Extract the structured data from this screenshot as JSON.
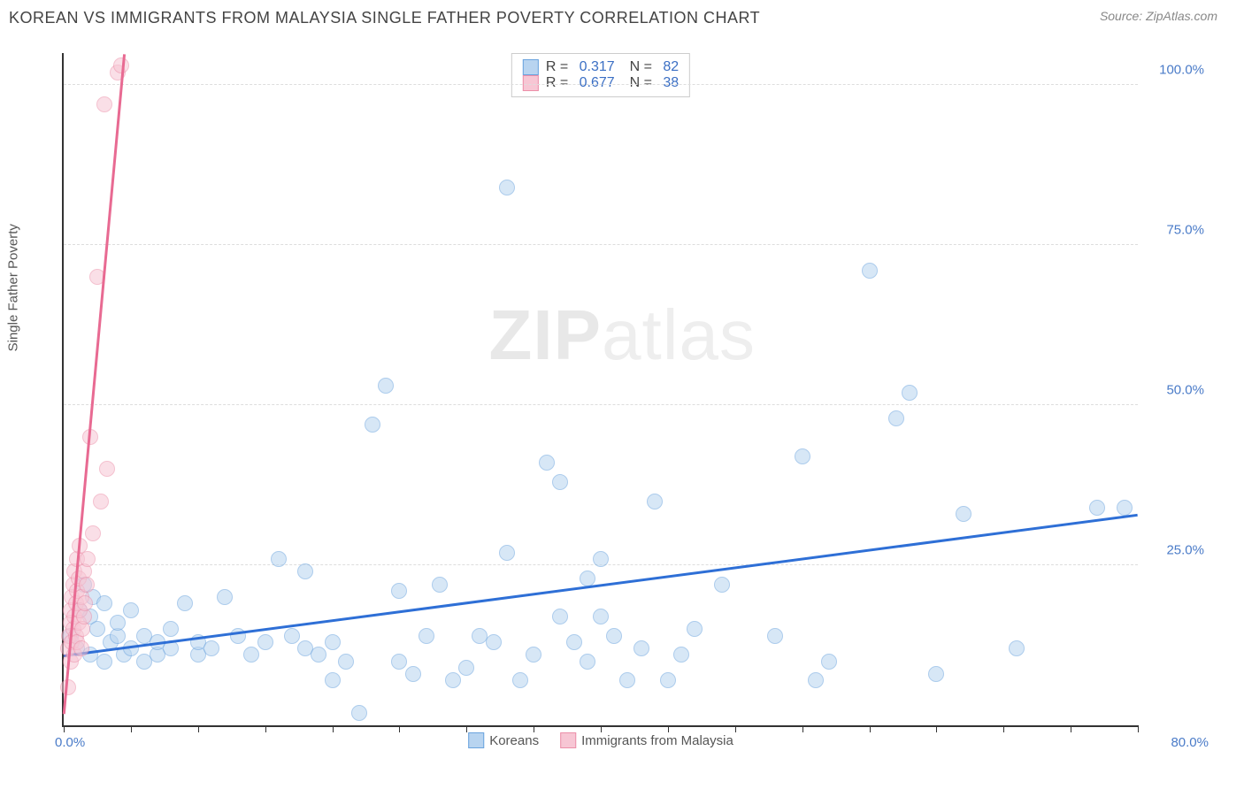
{
  "title": "KOREAN VS IMMIGRANTS FROM MALAYSIA SINGLE FATHER POVERTY CORRELATION CHART",
  "source": "Source: ZipAtlas.com",
  "watermark_bold": "ZIP",
  "watermark_light": "atlas",
  "chart": {
    "type": "scatter",
    "ylabel": "Single Father Poverty",
    "xlim": [
      0,
      80
    ],
    "ylim": [
      0,
      105
    ],
    "xtick_positions": [
      0,
      5,
      10,
      15,
      20,
      25,
      30,
      35,
      40,
      45,
      50,
      55,
      60,
      65,
      70,
      75,
      80
    ],
    "xtick_labels": {
      "min": "0.0%",
      "max": "80.0%"
    },
    "ytick_positions": [
      25,
      50,
      75,
      100
    ],
    "ytick_labels": [
      "25.0%",
      "50.0%",
      "75.0%",
      "100.0%"
    ],
    "grid_color": "#dddddd",
    "axis_color": "#333333",
    "background_color": "#ffffff",
    "marker_radius": 9,
    "marker_opacity": 0.55,
    "series": [
      {
        "name": "Koreans",
        "color_fill": "#b8d4f0",
        "color_stroke": "#6aa3de",
        "trend_color": "#2e6fd6",
        "R": "0.317",
        "N": "82",
        "trend": {
          "x1": 0,
          "y1": 11,
          "x2": 80,
          "y2": 33
        },
        "points": [
          [
            0.5,
            14
          ],
          [
            1,
            12
          ],
          [
            1.2,
            18
          ],
          [
            1.5,
            22
          ],
          [
            2,
            11
          ],
          [
            2,
            17
          ],
          [
            2.2,
            20
          ],
          [
            2.5,
            15
          ],
          [
            3,
            19
          ],
          [
            3,
            10
          ],
          [
            3.5,
            13
          ],
          [
            4,
            14
          ],
          [
            4,
            16
          ],
          [
            4.5,
            11
          ],
          [
            5,
            12
          ],
          [
            5,
            18
          ],
          [
            6,
            10
          ],
          [
            6,
            14
          ],
          [
            7,
            11
          ],
          [
            7,
            13
          ],
          [
            8,
            12
          ],
          [
            8,
            15
          ],
          [
            9,
            19
          ],
          [
            10,
            11
          ],
          [
            10,
            13
          ],
          [
            11,
            12
          ],
          [
            12,
            20
          ],
          [
            13,
            14
          ],
          [
            14,
            11
          ],
          [
            15,
            13
          ],
          [
            16,
            26
          ],
          [
            17,
            14
          ],
          [
            18,
            12
          ],
          [
            18,
            24
          ],
          [
            19,
            11
          ],
          [
            20,
            7
          ],
          [
            20,
            13
          ],
          [
            21,
            10
          ],
          [
            22,
            2
          ],
          [
            23,
            47
          ],
          [
            24,
            53
          ],
          [
            25,
            10
          ],
          [
            25,
            21
          ],
          [
            26,
            8
          ],
          [
            27,
            14
          ],
          [
            28,
            22
          ],
          [
            29,
            7
          ],
          [
            30,
            9
          ],
          [
            31,
            14
          ],
          [
            32,
            13
          ],
          [
            33,
            84
          ],
          [
            33,
            27
          ],
          [
            34,
            7
          ],
          [
            35,
            11
          ],
          [
            36,
            41
          ],
          [
            37,
            38
          ],
          [
            37,
            17
          ],
          [
            38,
            13
          ],
          [
            39,
            10
          ],
          [
            39,
            23
          ],
          [
            40,
            17
          ],
          [
            40,
            26
          ],
          [
            41,
            14
          ],
          [
            42,
            7
          ],
          [
            43,
            12
          ],
          [
            44,
            35
          ],
          [
            45,
            7
          ],
          [
            46,
            11
          ],
          [
            47,
            15
          ],
          [
            49,
            22
          ],
          [
            53,
            14
          ],
          [
            55,
            42
          ],
          [
            56,
            7
          ],
          [
            57,
            10
          ],
          [
            60,
            71
          ],
          [
            62,
            48
          ],
          [
            63,
            52
          ],
          [
            65,
            8
          ],
          [
            67,
            33
          ],
          [
            71,
            12
          ],
          [
            77,
            34
          ],
          [
            79,
            34
          ]
        ]
      },
      {
        "name": "Immigrants from Malaysia",
        "color_fill": "#f7c6d4",
        "color_stroke": "#ec8fa9",
        "trend_color": "#e86a92",
        "R": "0.677",
        "N": "38",
        "trend": {
          "x1": 0,
          "y1": 2,
          "x2": 4.5,
          "y2": 105
        },
        "points": [
          [
            0.3,
            6
          ],
          [
            0.3,
            12
          ],
          [
            0.4,
            14
          ],
          [
            0.5,
            10
          ],
          [
            0.5,
            16
          ],
          [
            0.5,
            18
          ],
          [
            0.6,
            13
          ],
          [
            0.6,
            20
          ],
          [
            0.7,
            15
          ],
          [
            0.7,
            22
          ],
          [
            0.8,
            11
          ],
          [
            0.8,
            17
          ],
          [
            0.8,
            24
          ],
          [
            0.9,
            14
          ],
          [
            0.9,
            19
          ],
          [
            1.0,
            13
          ],
          [
            1.0,
            21
          ],
          [
            1.0,
            26
          ],
          [
            1.1,
            16
          ],
          [
            1.1,
            23
          ],
          [
            1.2,
            18
          ],
          [
            1.2,
            28
          ],
          [
            1.3,
            12
          ],
          [
            1.3,
            20
          ],
          [
            1.4,
            15
          ],
          [
            1.5,
            17
          ],
          [
            1.5,
            24
          ],
          [
            1.6,
            19
          ],
          [
            1.7,
            22
          ],
          [
            1.8,
            26
          ],
          [
            2.0,
            45
          ],
          [
            2.2,
            30
          ],
          [
            2.5,
            70
          ],
          [
            2.8,
            35
          ],
          [
            3.0,
            97
          ],
          [
            3.2,
            40
          ],
          [
            4.0,
            102
          ],
          [
            4.3,
            103
          ]
        ]
      }
    ],
    "legend_bottom": [
      {
        "label": "Koreans",
        "fill": "#b8d4f0",
        "stroke": "#6aa3de"
      },
      {
        "label": "Immigrants from Malaysia",
        "fill": "#f7c6d4",
        "stroke": "#ec8fa9"
      }
    ]
  }
}
